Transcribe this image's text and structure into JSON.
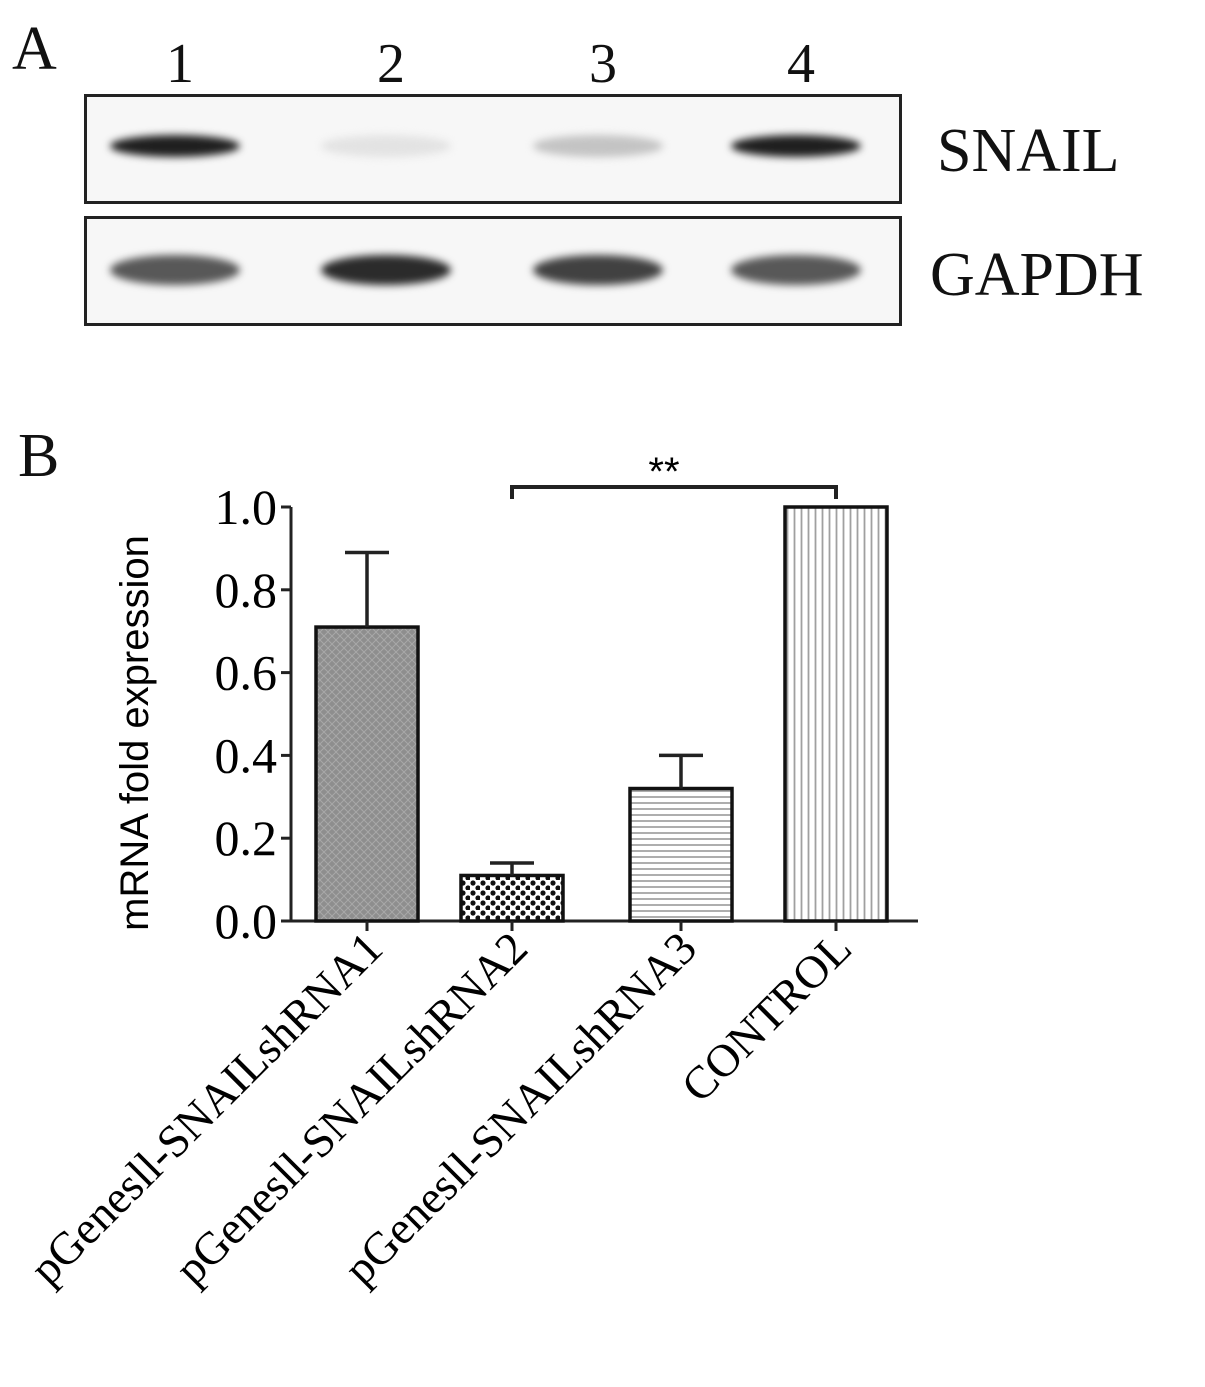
{
  "panel_a": {
    "letter": "A",
    "lanes": [
      "1",
      "2",
      "3",
      "4"
    ],
    "blots": [
      {
        "label": "SNAIL",
        "intensity": [
          0.95,
          0.08,
          0.22,
          0.95
        ]
      },
      {
        "label": "GAPDH",
        "intensity": [
          0.7,
          0.9,
          0.8,
          0.7
        ]
      }
    ]
  },
  "panel_b": {
    "letter": "B"
  },
  "chart_data": {
    "type": "bar",
    "categories": [
      "pGenesll-SNAILshRNA1",
      "pGenesll-SNAILshRNA2",
      "pGenesll-SNAILshRNA3",
      "CONTROL"
    ],
    "values": [
      0.71,
      0.11,
      0.32,
      1.0
    ],
    "errors": [
      0.18,
      0.03,
      0.08,
      0.0
    ],
    "fill_patterns": [
      "crosshatch-gray",
      "dots",
      "horizontal-lines",
      "vertical-lines"
    ],
    "title": "",
    "xlabel": "",
    "ylabel": "mRNA fold expression",
    "ylim": [
      0,
      1.0
    ],
    "yticks": [
      "0.0",
      "0.2",
      "0.4",
      "0.6",
      "0.8",
      "1.0"
    ],
    "grid": false,
    "significance": {
      "from": 1,
      "to": 3,
      "label": "**"
    }
  }
}
